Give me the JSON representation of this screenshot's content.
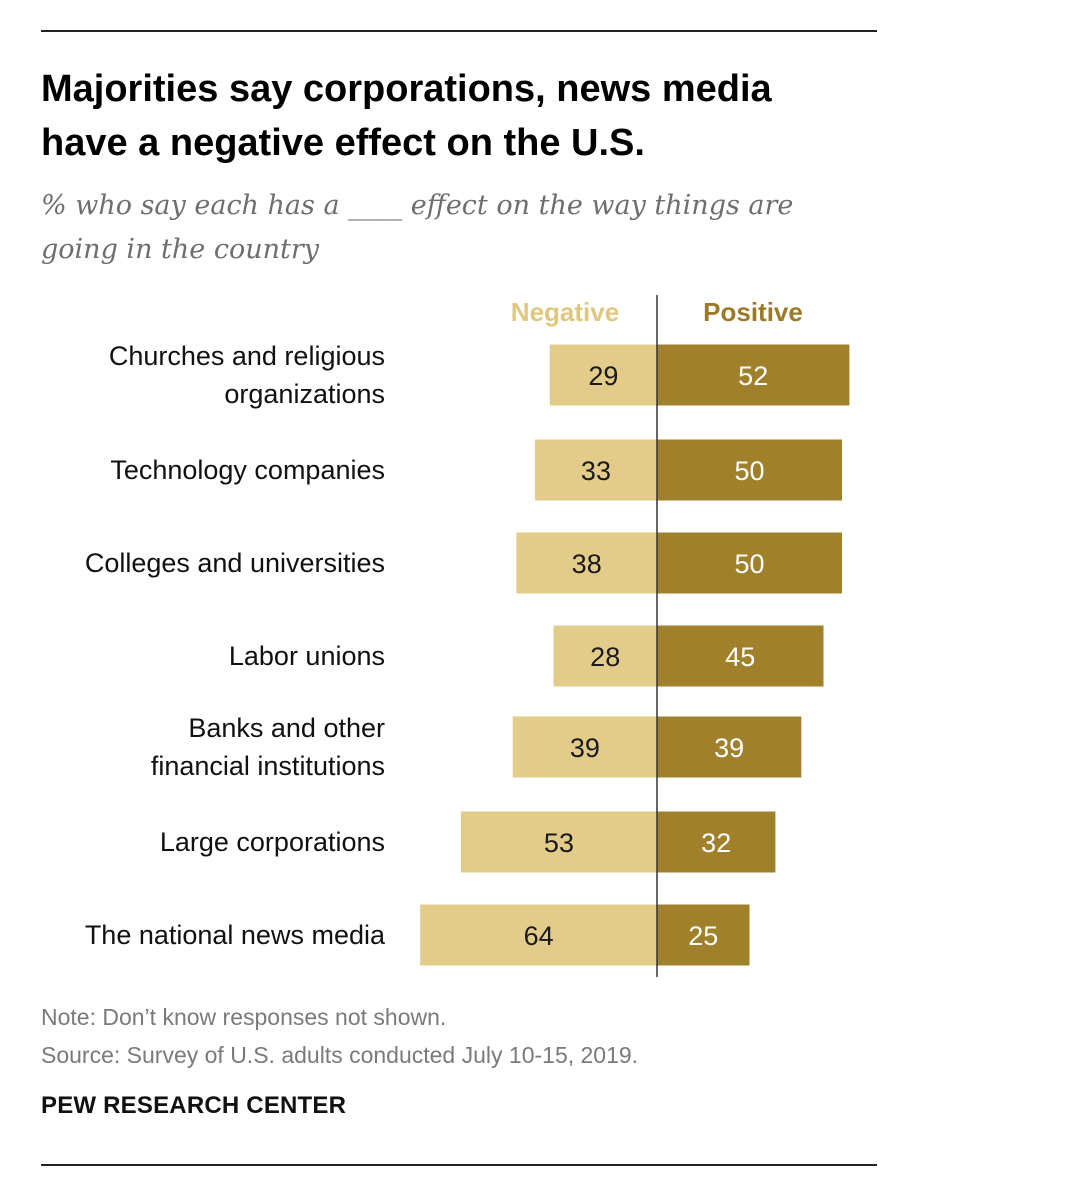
{
  "title_line1": "Majorities say corporations, news media",
  "title_line2": "have a negative effect on the U.S.",
  "subtitle_line1": "% who say each has a ____ effect on the way things are",
  "subtitle_line2": "going in the country",
  "chart_data": {
    "type": "bar",
    "orientation": "horizontal-diverging",
    "categories": [
      [
        "Churches and religious",
        "organizations"
      ],
      [
        "Technology companies"
      ],
      [
        "Colleges and universities"
      ],
      [
        "Labor unions"
      ],
      [
        "Banks and other",
        "financial institutions"
      ],
      [
        "Large corporations"
      ],
      [
        "The national news media"
      ]
    ],
    "series": [
      {
        "name": "Negative",
        "color": "#e3cc8a",
        "label_color": "#e0c77f",
        "values": [
          29,
          33,
          38,
          28,
          39,
          53,
          64
        ]
      },
      {
        "name": "Positive",
        "color": "#a0802a",
        "label_color": "#9a7a26",
        "values": [
          52,
          50,
          50,
          45,
          39,
          32,
          25
        ]
      }
    ],
    "xlim": [
      0,
      100
    ]
  },
  "note": "Note: Don’t know responses not shown.",
  "source": "Source: Survey of U.S. adults conducted July 10-15, 2019.",
  "brand": "PEW RESEARCH CENTER"
}
